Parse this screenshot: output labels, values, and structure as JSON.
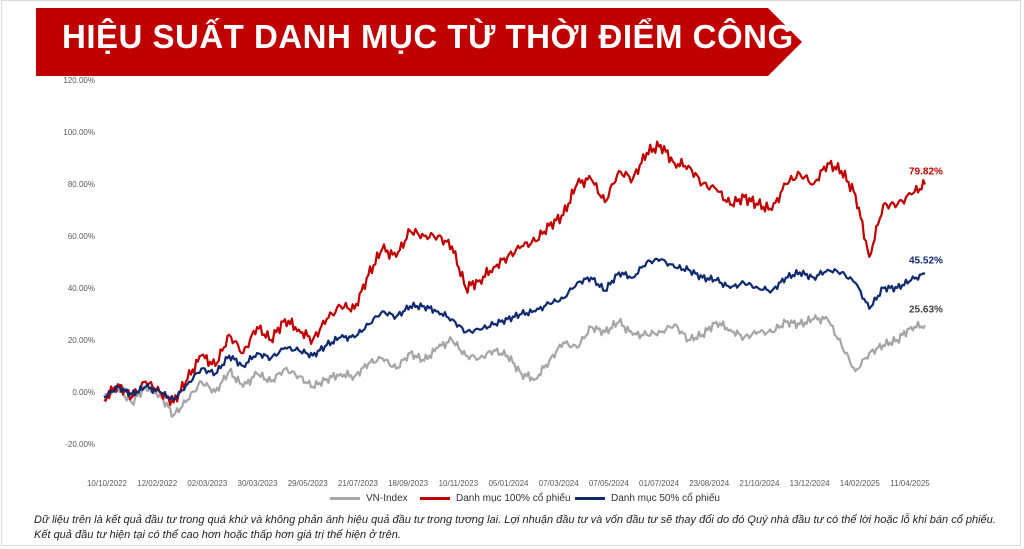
{
  "banner": {
    "title": "HIỆU SUẤT DANH MỤC TỪ THỜI ĐIỂM CÔNG BỐ",
    "color": "#c00000"
  },
  "footnotes": [
    "Dữ liệu trên là kết quả đầu tư trong quá khứ và không phản ánh hiệu quả đầu tư trong tương lai. Lợi nhuận đầu tư và vốn đầu tư sẽ thay đổi do đó Quý nhà đầu tư có thể lời hoặc lỗ khi bán cổ phiếu.",
    "Kết quả đầu tư hiện tại có thể cao hơn hoặc thấp hơn giá trị thể hiện ở trên."
  ],
  "chart_data": {
    "type": "line",
    "ylim": [
      -20,
      120
    ],
    "yticks": [
      -20,
      0,
      20,
      40,
      60,
      80,
      100,
      120
    ],
    "ytick_labels": [
      "-20.00%",
      "0.00%",
      "20.00%",
      "40.00%",
      "60.00%",
      "80.00%",
      "100.00%",
      "120.00%"
    ],
    "x_ticks": [
      "10/10/2022",
      "12/02/2022",
      "02/03/2023",
      "30/03/2023",
      "29/05/2023",
      "21/07/2023",
      "18/09/2023",
      "10/11/2023",
      "05/01/2024",
      "07/03/2024",
      "07/05/2024",
      "01/07/2024",
      "23/08/2024",
      "21/10/2024",
      "13/12/2024",
      "14/02/2025",
      "11/04/2025"
    ],
    "grid": false,
    "legend_position": "bottom",
    "series": [
      {
        "name": "VN-Index",
        "color": "#a6a6a6",
        "end_label": "25.63%",
        "values": [
          -2,
          1,
          -4,
          2,
          -1,
          -9,
          -3,
          4,
          0,
          8,
          2,
          7,
          4,
          9,
          6,
          2,
          5,
          7,
          6,
          11,
          13,
          9,
          15,
          12,
          17,
          20,
          14,
          13,
          16,
          14,
          7,
          5,
          12,
          19,
          17,
          25,
          23,
          27,
          22,
          22,
          23,
          26,
          20,
          22,
          27,
          24,
          21,
          23,
          23,
          27,
          26,
          28,
          28,
          18,
          8,
          15,
          18,
          20,
          25,
          25.63
        ]
      },
      {
        "name": "Danh mục 100% cổ phiếu",
        "color": "#c00000",
        "end_label": "79.82%",
        "values": [
          -3,
          3,
          -2,
          4,
          0,
          -4,
          5,
          14,
          10,
          22,
          15,
          25,
          20,
          28,
          24,
          20,
          28,
          33,
          32,
          45,
          55,
          52,
          62,
          60,
          60,
          56,
          40,
          43,
          48,
          52,
          56,
          58,
          64,
          68,
          80,
          82,
          73,
          85,
          82,
          92,
          95,
          88,
          87,
          80,
          78,
          72,
          75,
          72,
          70,
          80,
          84,
          80,
          88,
          85,
          76,
          52,
          72,
          72,
          76,
          79.82
        ]
      },
      {
        "name": "Danh mục 50% cổ phiếu",
        "color": "#0f2a6e",
        "end_label": "45.52%",
        "values": [
          -2,
          2,
          -1,
          2,
          0,
          -3,
          3,
          9,
          7,
          14,
          10,
          15,
          13,
          17,
          16,
          14,
          18,
          21,
          21,
          26,
          31,
          29,
          33,
          33,
          31,
          28,
          23,
          24,
          26,
          28,
          30,
          31,
          34,
          36,
          42,
          44,
          39,
          46,
          44,
          50,
          51,
          48,
          47,
          44,
          43,
          40,
          42,
          40,
          39,
          44,
          46,
          44,
          47,
          46,
          42,
          32,
          40,
          40,
          43,
          45.52
        ]
      }
    ]
  }
}
